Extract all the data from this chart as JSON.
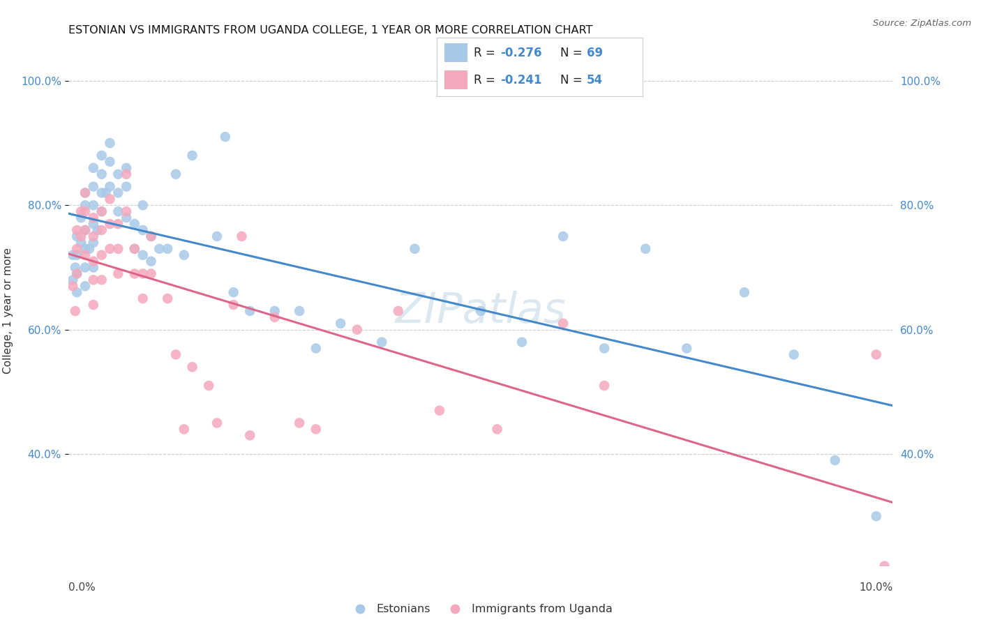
{
  "title": "ESTONIAN VS IMMIGRANTS FROM UGANDA COLLEGE, 1 YEAR OR MORE CORRELATION CHART",
  "source": "Source: ZipAtlas.com",
  "ylabel": "College, 1 year or more",
  "xlim": [
    0.0,
    0.1
  ],
  "ylim": [
    0.22,
    1.04
  ],
  "yticks": [
    0.4,
    0.6,
    0.8,
    1.0
  ],
  "ytick_labels": [
    "40.0%",
    "60.0%",
    "80.0%",
    "100.0%"
  ],
  "blue_color": "#a8c8e8",
  "pink_color": "#f4a8bc",
  "blue_line_color": "#4488cc",
  "pink_line_color": "#dd6688",
  "watermark_color": "#dce8f0",
  "blue_x": [
    0.0005,
    0.0005,
    0.0008,
    0.001,
    0.001,
    0.001,
    0.001,
    0.0015,
    0.0015,
    0.002,
    0.002,
    0.002,
    0.002,
    0.002,
    0.002,
    0.0025,
    0.003,
    0.003,
    0.003,
    0.003,
    0.003,
    0.003,
    0.0035,
    0.004,
    0.004,
    0.004,
    0.004,
    0.0045,
    0.005,
    0.005,
    0.005,
    0.006,
    0.006,
    0.006,
    0.007,
    0.007,
    0.007,
    0.008,
    0.008,
    0.009,
    0.009,
    0.009,
    0.01,
    0.01,
    0.011,
    0.012,
    0.013,
    0.014,
    0.015,
    0.018,
    0.019,
    0.02,
    0.022,
    0.025,
    0.028,
    0.03,
    0.033,
    0.038,
    0.042,
    0.05,
    0.055,
    0.06,
    0.065,
    0.07,
    0.075,
    0.082,
    0.088,
    0.093,
    0.098
  ],
  "blue_y": [
    0.72,
    0.68,
    0.7,
    0.75,
    0.72,
    0.69,
    0.66,
    0.78,
    0.74,
    0.82,
    0.8,
    0.76,
    0.73,
    0.7,
    0.67,
    0.73,
    0.86,
    0.83,
    0.8,
    0.77,
    0.74,
    0.7,
    0.76,
    0.88,
    0.85,
    0.82,
    0.79,
    0.82,
    0.9,
    0.87,
    0.83,
    0.85,
    0.82,
    0.79,
    0.86,
    0.83,
    0.78,
    0.77,
    0.73,
    0.8,
    0.76,
    0.72,
    0.75,
    0.71,
    0.73,
    0.73,
    0.85,
    0.72,
    0.88,
    0.75,
    0.91,
    0.66,
    0.63,
    0.63,
    0.63,
    0.57,
    0.61,
    0.58,
    0.73,
    0.63,
    0.58,
    0.75,
    0.57,
    0.73,
    0.57,
    0.66,
    0.56,
    0.39,
    0.3
  ],
  "pink_x": [
    0.0005,
    0.0008,
    0.001,
    0.001,
    0.001,
    0.0015,
    0.0015,
    0.002,
    0.002,
    0.002,
    0.002,
    0.003,
    0.003,
    0.003,
    0.003,
    0.003,
    0.004,
    0.004,
    0.004,
    0.004,
    0.005,
    0.005,
    0.005,
    0.006,
    0.006,
    0.006,
    0.007,
    0.007,
    0.008,
    0.008,
    0.009,
    0.009,
    0.01,
    0.01,
    0.012,
    0.013,
    0.014,
    0.015,
    0.017,
    0.018,
    0.02,
    0.021,
    0.022,
    0.025,
    0.028,
    0.03,
    0.035,
    0.04,
    0.045,
    0.052,
    0.06,
    0.065,
    0.098,
    0.099
  ],
  "pink_y": [
    0.67,
    0.63,
    0.76,
    0.73,
    0.69,
    0.79,
    0.75,
    0.82,
    0.79,
    0.76,
    0.72,
    0.78,
    0.75,
    0.71,
    0.68,
    0.64,
    0.79,
    0.76,
    0.72,
    0.68,
    0.81,
    0.77,
    0.73,
    0.77,
    0.73,
    0.69,
    0.85,
    0.79,
    0.73,
    0.69,
    0.69,
    0.65,
    0.75,
    0.69,
    0.65,
    0.56,
    0.44,
    0.54,
    0.51,
    0.45,
    0.64,
    0.75,
    0.43,
    0.62,
    0.45,
    0.44,
    0.6,
    0.63,
    0.47,
    0.44,
    0.61,
    0.51,
    0.56,
    0.22
  ]
}
